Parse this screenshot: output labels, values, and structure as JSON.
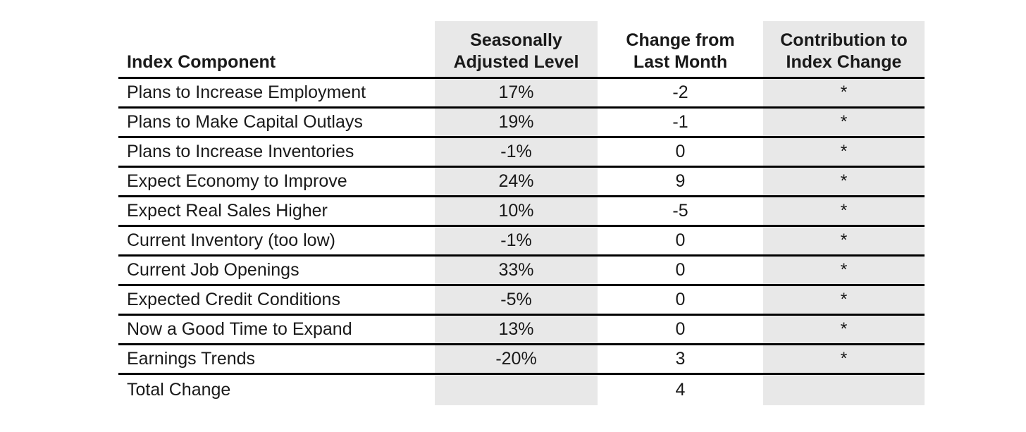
{
  "colors": {
    "shaded_column_bg": "#e8e8e8",
    "rule_color": "#000000",
    "text_color": "#1a1a1a",
    "page_bg": "#ffffff"
  },
  "table": {
    "columns": [
      {
        "label": "Index Component"
      },
      {
        "label": "Seasonally\nAdjusted Level"
      },
      {
        "label": "Change from\nLast Month"
      },
      {
        "label": "Contribution to\nIndex Change"
      }
    ],
    "rows": [
      {
        "component": "Plans to Increase Employment",
        "level": "17%",
        "change": "-2",
        "contribution": "*"
      },
      {
        "component": "Plans to Make Capital Outlays",
        "level": "19%",
        "change": "-1",
        "contribution": "*"
      },
      {
        "component": "Plans to Increase Inventories",
        "level": "-1%",
        "change": "0",
        "contribution": "*"
      },
      {
        "component": "Expect Economy to Improve",
        "level": "24%",
        "change": "9",
        "contribution": "*"
      },
      {
        "component": "Expect Real Sales Higher",
        "level": "10%",
        "change": "-5",
        "contribution": "*"
      },
      {
        "component": "Current Inventory (too low)",
        "level": "-1%",
        "change": "0",
        "contribution": "*"
      },
      {
        "component": "Current Job Openings",
        "level": "33%",
        "change": "0",
        "contribution": "*"
      },
      {
        "component": "Expected Credit Conditions",
        "level": "-5%",
        "change": "0",
        "contribution": "*"
      },
      {
        "component": "Now a Good Time to Expand",
        "level": "13%",
        "change": "0",
        "contribution": "*"
      },
      {
        "component": "Earnings Trends",
        "level": "-20%",
        "change": "3",
        "contribution": "*"
      },
      {
        "component": "Total Change",
        "level": "",
        "change": "4",
        "contribution": "",
        "is_total": true
      }
    ]
  },
  "chart_data": {
    "type": "table",
    "columns": [
      "Index Component",
      "Seasonally Adjusted Level",
      "Change from Last Month",
      "Contribution to Index Change"
    ],
    "rows": [
      [
        "Plans to Increase Employment",
        "17%",
        "-2",
        "*"
      ],
      [
        "Plans to Make Capital Outlays",
        "19%",
        "-1",
        "*"
      ],
      [
        "Plans to Increase Inventories",
        "-1%",
        "0",
        "*"
      ],
      [
        "Expect Economy to Improve",
        "24%",
        "9",
        "*"
      ],
      [
        "Expect Real Sales Higher",
        "10%",
        "-5",
        "*"
      ],
      [
        "Current Inventory (too low)",
        "-1%",
        "0",
        "*"
      ],
      [
        "Current Job Openings",
        "33%",
        "0",
        "*"
      ],
      [
        "Expected Credit Conditions",
        "-5%",
        "0",
        "*"
      ],
      [
        "Now a Good Time to Expand",
        "13%",
        "0",
        "*"
      ],
      [
        "Earnings Trends",
        "-20%",
        "3",
        "*"
      ],
      [
        "Total Change",
        "",
        "4",
        ""
      ]
    ],
    "notes": "Columns 'Seasonally Adjusted Level' and 'Contribution to Index Change' are shaded gray; contribution values shown as asterisks; total change of index = 4"
  }
}
